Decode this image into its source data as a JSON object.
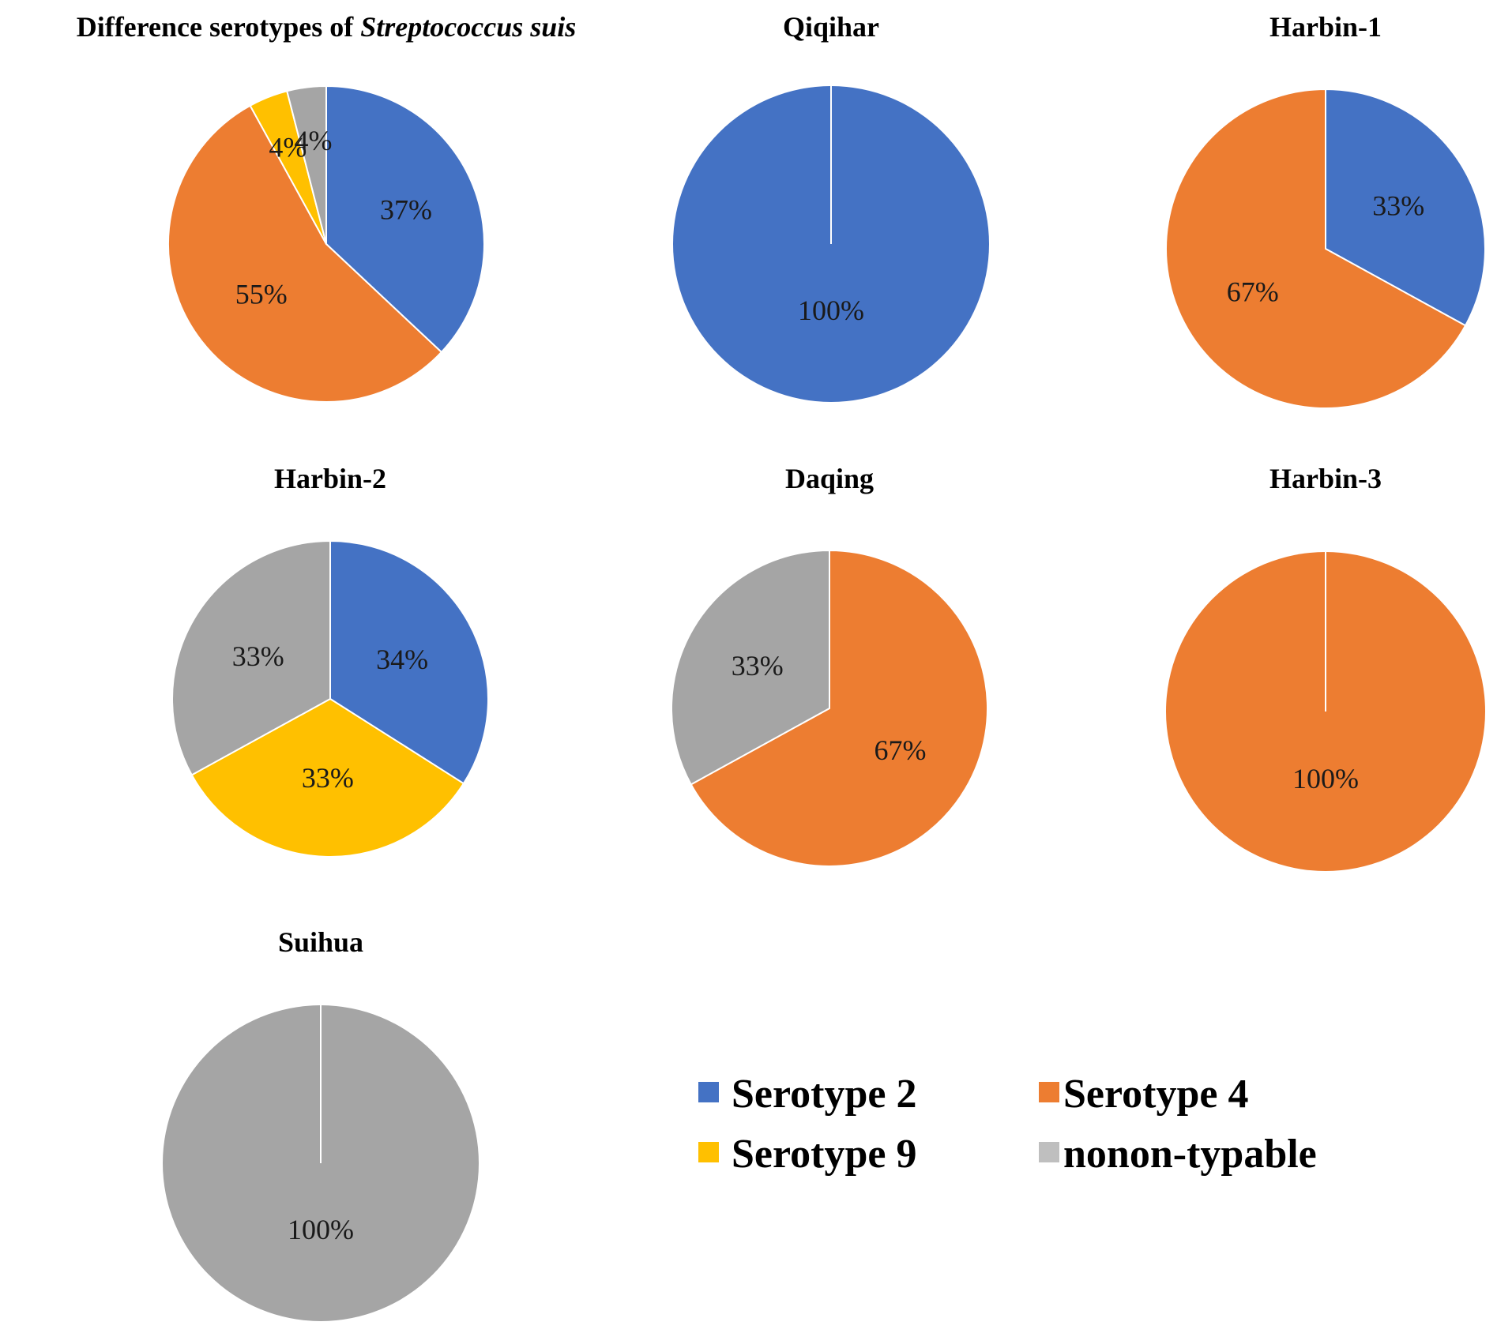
{
  "figure": {
    "series_colors": {
      "Serotype 2": "#4472C4",
      "Serotype 4": "#ED7D31",
      "Serotype 9": "#FFC000",
      "nonon-typable": "#A5A5A5"
    }
  },
  "chart_data": [
    {
      "type": "pie",
      "id": "overall",
      "title": "Difference serotypes of ",
      "title_italic": "Streptococcus suis",
      "slices": [
        {
          "label": "Serotype 2",
          "value": 37,
          "text": "37%"
        },
        {
          "label": "Serotype 4",
          "value": 55,
          "text": "55%"
        },
        {
          "label": "Serotype 9",
          "value": 4,
          "text": "4%"
        },
        {
          "label": "nonon-typable",
          "value": 4,
          "text": "4%"
        }
      ]
    },
    {
      "type": "pie",
      "id": "qiqihar",
      "title": "Qiqihar",
      "slices": [
        {
          "label": "Serotype 2",
          "value": 100,
          "text": "100%"
        }
      ]
    },
    {
      "type": "pie",
      "id": "harbin-1",
      "title": "Harbin-1",
      "slices": [
        {
          "label": "Serotype 2",
          "value": 33,
          "text": "33%"
        },
        {
          "label": "Serotype 4",
          "value": 67,
          "text": "67%"
        }
      ]
    },
    {
      "type": "pie",
      "id": "harbin-2",
      "title": "Harbin-2",
      "slices": [
        {
          "label": "Serotype 2",
          "value": 34,
          "text": "34%"
        },
        {
          "label": "Serotype 9",
          "value": 33,
          "text": "33%"
        },
        {
          "label": "nonon-typable",
          "value": 33,
          "text": "33%"
        }
      ]
    },
    {
      "type": "pie",
      "id": "daqing",
      "title": "Daqing",
      "slices": [
        {
          "label": "Serotype 4",
          "value": 67,
          "text": "67%"
        },
        {
          "label": "nonon-typable",
          "value": 33,
          "text": "33%"
        }
      ]
    },
    {
      "type": "pie",
      "id": "harbin-3",
      "title": "Harbin-3",
      "slices": [
        {
          "label": "Serotype 4",
          "value": 100,
          "text": "100%"
        }
      ]
    },
    {
      "type": "pie",
      "id": "suihua",
      "title": "Suihua",
      "slices": [
        {
          "label": "nonon-typable",
          "value": 100,
          "text": "100%"
        }
      ]
    }
  ],
  "legend": {
    "items": [
      {
        "label": "Serotype 2"
      },
      {
        "label": "Serotype 4"
      },
      {
        "label": "Serotype 9"
      },
      {
        "label": "nonon-typable"
      }
    ]
  }
}
